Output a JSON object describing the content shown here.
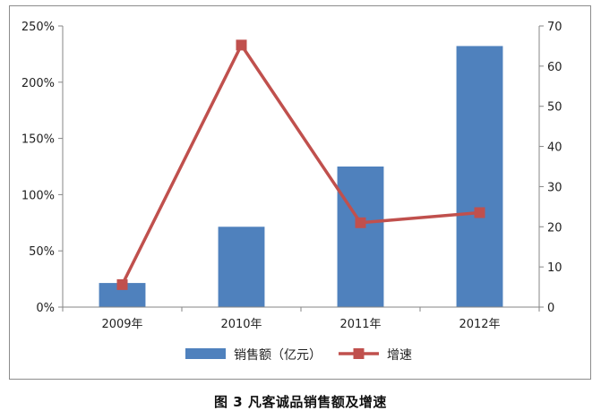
{
  "chart_data": {
    "type": "bar",
    "categories": [
      "2009年",
      "2010年",
      "2011年",
      "2012年"
    ],
    "series": [
      {
        "name": "销售额（亿元）",
        "type": "bar",
        "axis": "right",
        "color": "#4f81bd",
        "values": [
          6,
          20,
          35,
          65
        ]
      },
      {
        "name": "增速",
        "type": "line",
        "axis": "left",
        "color": "#c0504d",
        "values": [
          0.2,
          2.33,
          0.75,
          0.84
        ]
      }
    ],
    "y_left": {
      "min": 0,
      "max": 2.5,
      "step": 0.5,
      "tick_labels": [
        "0%",
        "50%",
        "100%",
        "150%",
        "200%",
        "250%"
      ]
    },
    "y_right": {
      "min": 0,
      "max": 70,
      "step": 10,
      "tick_labels": [
        "0",
        "10",
        "20",
        "30",
        "40",
        "50",
        "60",
        "70"
      ]
    },
    "grid": false,
    "legend": "bottom"
  },
  "caption": "图 3 凡客诚品销售额及增速"
}
